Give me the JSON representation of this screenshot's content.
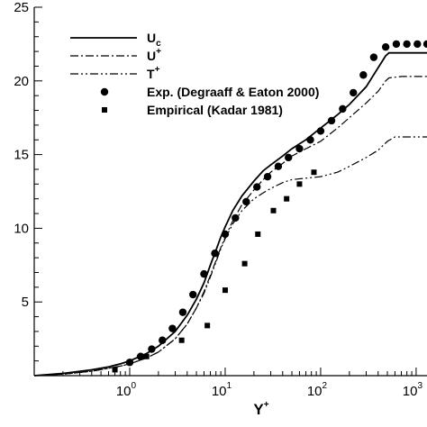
{
  "chart_data": {
    "type": "line",
    "xlabel_main": "Y",
    "xlabel_sup": "+",
    "ylabel": "",
    "xscale": "log",
    "xlim": [
      0.1,
      1300
    ],
    "ylim": [
      0,
      25
    ],
    "x_ticks": [
      {
        "base": "10",
        "exp": "0",
        "value": 1
      },
      {
        "base": "10",
        "exp": "1",
        "value": 10
      },
      {
        "base": "10",
        "exp": "2",
        "value": 100
      },
      {
        "base": "10",
        "exp": "3",
        "value": 1000
      }
    ],
    "y_ticks": [
      {
        "label": "5",
        "value": 5
      },
      {
        "label": "10",
        "value": 10
      },
      {
        "label": "15",
        "value": 15
      },
      {
        "label": "20",
        "value": 20
      },
      {
        "label": "25",
        "value": 25
      }
    ],
    "grid": false,
    "legend_position": "top-left",
    "legend": [
      {
        "main": "U",
        "sub": "c",
        "sup": "",
        "style": "solid"
      },
      {
        "main": "U",
        "sub": "",
        "sup": "+",
        "style": "dashdot"
      },
      {
        "main": "T",
        "sub": "",
        "sup": "+",
        "style": "dashdotdot"
      },
      {
        "main": "Exp. (Degraaff & Eaton 2000)",
        "sub": "",
        "sup": "",
        "style": "circle"
      },
      {
        "main": "Empirical (Kadar 1981)",
        "sub": "",
        "sup": "",
        "style": "square"
      }
    ],
    "series": [
      {
        "style": "solid",
        "x": [
          0.1,
          0.2,
          0.4,
          0.6,
          0.8,
          1,
          1.5,
          2,
          3,
          4,
          5,
          6,
          7,
          8,
          9,
          10,
          12,
          15,
          20,
          25,
          30,
          40,
          50,
          70,
          100,
          150,
          200,
          300,
          400,
          480,
          520,
          700,
          1000,
          1300
        ],
        "y": [
          0,
          0.15,
          0.4,
          0.6,
          0.8,
          1.0,
          1.5,
          2.0,
          3.0,
          4.1,
          5.2,
          6.3,
          7.5,
          8.5,
          9.4,
          10.1,
          11.2,
          12.2,
          13.2,
          13.9,
          14.3,
          14.9,
          15.4,
          16.0,
          16.8,
          17.7,
          18.4,
          19.6,
          20.9,
          21.7,
          21.9,
          21.9,
          21.9,
          21.9
        ]
      },
      {
        "style": "dashdot",
        "x": [
          0.1,
          0.2,
          0.4,
          0.6,
          0.8,
          1,
          1.5,
          2,
          3,
          4,
          5,
          6,
          7,
          8,
          9,
          10,
          12,
          15,
          20,
          25,
          30,
          40,
          50,
          70,
          100,
          150,
          200,
          300,
          400,
          480,
          520,
          700,
          1000,
          1300
        ],
        "y": [
          0,
          0.1,
          0.3,
          0.5,
          0.65,
          0.8,
          1.2,
          1.6,
          2.5,
          3.5,
          4.6,
          5.7,
          6.8,
          7.8,
          8.7,
          9.4,
          10.5,
          11.6,
          12.6,
          13.3,
          13.8,
          14.4,
          14.9,
          15.4,
          15.9,
          16.8,
          17.5,
          18.5,
          19.3,
          20.0,
          20.2,
          20.3,
          20.3,
          20.3
        ]
      },
      {
        "style": "dashdotdot",
        "x": [
          0.1,
          0.2,
          0.4,
          0.6,
          0.8,
          1,
          1.5,
          2,
          3,
          4,
          5,
          6,
          7,
          8,
          9,
          10,
          12,
          15,
          20,
          25,
          30,
          40,
          50,
          70,
          100,
          150,
          200,
          300,
          400,
          500,
          600,
          700,
          1000,
          1300
        ],
        "y": [
          0,
          0.1,
          0.3,
          0.5,
          0.65,
          0.8,
          1.2,
          1.6,
          2.5,
          3.5,
          4.6,
          5.6,
          6.7,
          7.7,
          8.6,
          9.3,
          10.3,
          11.2,
          12.0,
          12.4,
          12.7,
          13.1,
          13.3,
          13.4,
          13.5,
          13.8,
          14.2,
          14.8,
          15.3,
          15.9,
          16.2,
          16.2,
          16.2,
          16.2
        ]
      },
      {
        "style": "circle",
        "x": [
          1,
          1.3,
          1.7,
          2.2,
          2.8,
          3.6,
          4.6,
          6.0,
          7.8,
          10,
          12.8,
          16.6,
          21.5,
          27.8,
          36,
          46,
          60,
          78,
          100,
          130,
          170,
          220,
          280,
          360,
          480,
          620,
          800,
          1030,
          1300
        ],
        "y": [
          0.9,
          1.3,
          1.8,
          2.4,
          3.2,
          4.3,
          5.5,
          6.9,
          8.3,
          9.6,
          10.7,
          11.8,
          12.8,
          13.5,
          14.2,
          14.8,
          15.4,
          16.0,
          16.6,
          17.3,
          18.1,
          19.2,
          20.4,
          21.6,
          22.3,
          22.5,
          22.5,
          22.5,
          22.5
        ]
      },
      {
        "style": "square",
        "x": [
          0.7,
          1.5,
          3.5,
          6.5,
          10,
          16,
          22,
          32,
          44,
          60,
          85
        ],
        "y": [
          0.4,
          1.3,
          2.4,
          3.4,
          5.8,
          7.6,
          9.6,
          11.2,
          12.0,
          13.0,
          13.8
        ]
      }
    ]
  }
}
